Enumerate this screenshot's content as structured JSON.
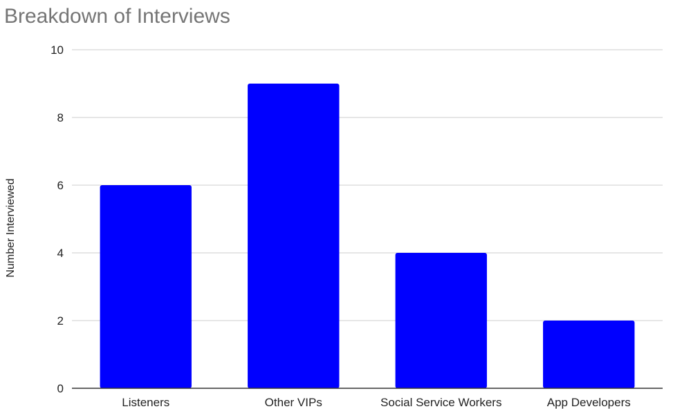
{
  "chart_data": {
    "type": "bar",
    "title": "Breakdown of Interviews",
    "xlabel": "",
    "ylabel": "Number Interviewed",
    "categories": [
      "Listeners",
      "Other VIPs",
      "Social Service Workers",
      "App Developers"
    ],
    "values": [
      6,
      9,
      4,
      2
    ],
    "ylim": [
      0,
      10
    ],
    "yticks": [
      0,
      2,
      4,
      6,
      8,
      10
    ],
    "grid": true,
    "legend": "none",
    "bar_color": "#0000ff"
  },
  "colors": {
    "gridline": "#cccccc",
    "axis": "#333333",
    "title": "#757575"
  }
}
